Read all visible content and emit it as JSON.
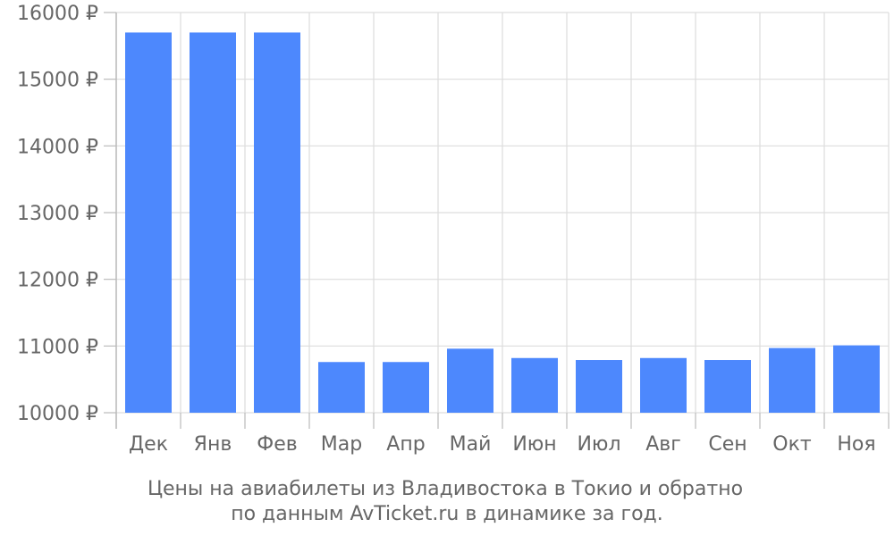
{
  "chart_data": {
    "type": "bar",
    "categories": [
      "Дек",
      "Янв",
      "Фев",
      "Мар",
      "Апр",
      "Май",
      "Июн",
      "Июл",
      "Авг",
      "Сен",
      "Окт",
      "Ноя"
    ],
    "values": [
      15700,
      15700,
      15700,
      10760,
      10760,
      10960,
      10820,
      10790,
      10820,
      10790,
      10970,
      11010
    ],
    "ylim": [
      10000,
      16000
    ],
    "y_ticks": [
      10000,
      11000,
      12000,
      13000,
      14000,
      15000,
      16000
    ],
    "y_tick_labels": [
      "10000 ₽",
      "11000 ₽",
      "12000 ₽",
      "13000 ₽",
      "14000 ₽",
      "15000 ₽",
      "16000 ₽"
    ],
    "grid": true,
    "bar_color": "#4d88fd",
    "grid_color": "#dddddd",
    "axis_color": "#bbbbbb",
    "text_color": "#666666"
  },
  "caption": {
    "line1": "Цены на авиабилеты из Владивостока в Токио и обратно",
    "line2": "по данным AvTicket.ru в динамике за год."
  }
}
